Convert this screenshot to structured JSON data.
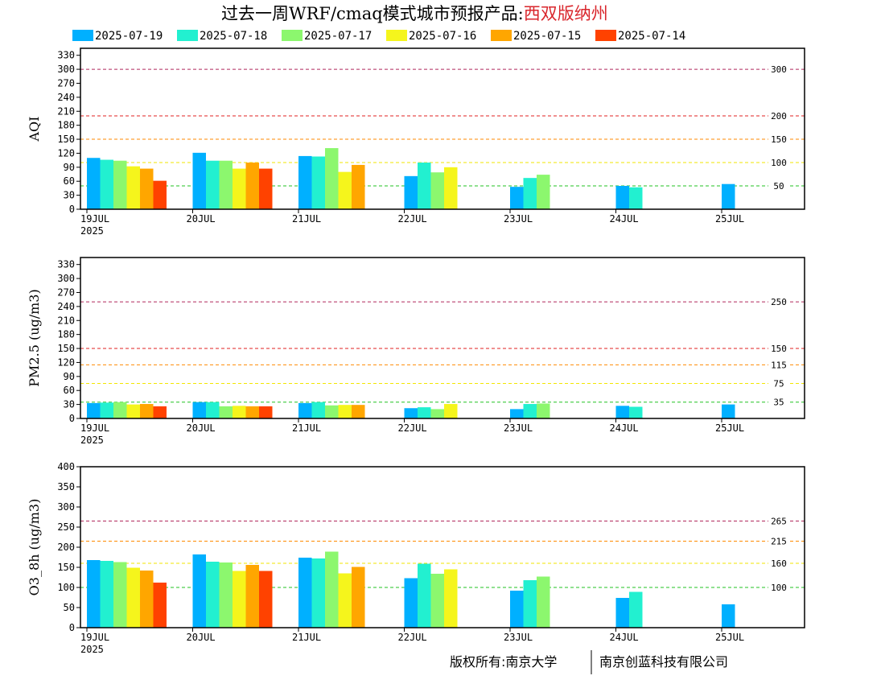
{
  "title": {
    "main": "过去一周WRF/cmaq模式城市预报产品:",
    "city": "西双版纳州"
  },
  "footer": {
    "left": "版权所有:南京大学",
    "right": "南京创蓝科技有限公司"
  },
  "chart_data": [
    {
      "type": "bar",
      "ylabel": "AQI",
      "ylim": [
        0,
        345
      ],
      "yticks": [
        0,
        30,
        60,
        90,
        120,
        150,
        180,
        210,
        240,
        270,
        300,
        330
      ],
      "categories": [
        "19JUL",
        "20JUL",
        "21JUL",
        "22JUL",
        "23JUL",
        "24JUL",
        "25JUL"
      ],
      "x_year_label": "2025",
      "series": [
        {
          "name": "2025-07-19",
          "color": "#00b0ff",
          "values": [
            110,
            121,
            114,
            71,
            48,
            50,
            54
          ]
        },
        {
          "name": "2025-07-18",
          "color": "#22f0d0",
          "values": [
            106,
            104,
            113,
            100,
            67,
            47,
            null
          ]
        },
        {
          "name": "2025-07-17",
          "color": "#8cf76e",
          "values": [
            104,
            104,
            131,
            79,
            74,
            null,
            null
          ]
        },
        {
          "name": "2025-07-16",
          "color": "#f5f51c",
          "values": [
            92,
            87,
            80,
            90,
            null,
            null,
            null
          ]
        },
        {
          "name": "2025-07-15",
          "color": "#ffa600",
          "values": [
            87,
            100,
            95,
            null,
            null,
            null,
            null
          ]
        },
        {
          "name": "2025-07-14",
          "color": "#ff4200",
          "values": [
            61,
            87,
            null,
            null,
            null,
            null,
            null
          ]
        }
      ],
      "thresholds": [
        {
          "value": 300,
          "label": "300",
          "color": "#b0285c"
        },
        {
          "value": 200,
          "label": "200",
          "color": "#e02020"
        },
        {
          "value": 150,
          "label": "150",
          "color": "#ff8a00"
        },
        {
          "value": 100,
          "label": "100",
          "color": "#f2e600"
        },
        {
          "value": 50,
          "label": "50",
          "color": "#22c322"
        }
      ]
    },
    {
      "type": "bar",
      "ylabel": "PM2.5 (ug/m3)",
      "ylim": [
        0,
        345
      ],
      "yticks": [
        0,
        30,
        60,
        90,
        120,
        150,
        180,
        210,
        240,
        270,
        300,
        330
      ],
      "categories": [
        "19JUL",
        "20JUL",
        "21JUL",
        "22JUL",
        "23JUL",
        "24JUL",
        "25JUL"
      ],
      "x_year_label": "2025",
      "series": [
        {
          "name": "2025-07-19",
          "color": "#00b0ff",
          "values": [
            33,
            35,
            33,
            22,
            20,
            27,
            30
          ]
        },
        {
          "name": "2025-07-18",
          "color": "#22f0d0",
          "values": [
            34,
            35,
            35,
            24,
            31,
            25,
            null
          ]
        },
        {
          "name": "2025-07-17",
          "color": "#8cf76e",
          "values": [
            35,
            26,
            28,
            20,
            32,
            null,
            null
          ]
        },
        {
          "name": "2025-07-16",
          "color": "#f5f51c",
          "values": [
            30,
            27,
            29,
            31,
            null,
            null,
            null
          ]
        },
        {
          "name": "2025-07-15",
          "color": "#ffa600",
          "values": [
            31,
            26,
            29,
            null,
            null,
            null,
            null
          ]
        },
        {
          "name": "2025-07-14",
          "color": "#ff4200",
          "values": [
            26,
            26,
            null,
            null,
            null,
            null,
            null
          ]
        }
      ],
      "thresholds": [
        {
          "value": 250,
          "label": "250",
          "color": "#b0285c"
        },
        {
          "value": 150,
          "label": "150",
          "color": "#e02020"
        },
        {
          "value": 115,
          "label": "115",
          "color": "#ff8a00"
        },
        {
          "value": 75,
          "label": "75",
          "color": "#f2e600"
        },
        {
          "value": 35,
          "label": "35",
          "color": "#22c322"
        }
      ]
    },
    {
      "type": "bar",
      "ylabel": "O3_8h (ug/m3)",
      "ylim": [
        0,
        400
      ],
      "yticks": [
        0,
        50,
        100,
        150,
        200,
        250,
        300,
        350,
        400
      ],
      "categories": [
        "19JUL",
        "20JUL",
        "21JUL",
        "22JUL",
        "23JUL",
        "24JUL",
        "25JUL"
      ],
      "x_year_label": "2025",
      "series": [
        {
          "name": "2025-07-19",
          "color": "#00b0ff",
          "values": [
            168,
            182,
            174,
            123,
            92,
            74,
            58
          ]
        },
        {
          "name": "2025-07-18",
          "color": "#22f0d0",
          "values": [
            166,
            164,
            172,
            159,
            118,
            89,
            null
          ]
        },
        {
          "name": "2025-07-17",
          "color": "#8cf76e",
          "values": [
            163,
            162,
            189,
            134,
            127,
            null,
            null
          ]
        },
        {
          "name": "2025-07-16",
          "color": "#f5f51c",
          "values": [
            149,
            141,
            135,
            145,
            null,
            null,
            null
          ]
        },
        {
          "name": "2025-07-15",
          "color": "#ffa600",
          "values": [
            142,
            156,
            151,
            null,
            null,
            null,
            null
          ]
        },
        {
          "name": "2025-07-14",
          "color": "#ff4200",
          "values": [
            112,
            141,
            null,
            null,
            null,
            null,
            null
          ]
        }
      ],
      "thresholds": [
        {
          "value": 265,
          "label": "265",
          "color": "#b0285c"
        },
        {
          "value": 215,
          "label": "215",
          "color": "#ff8a00"
        },
        {
          "value": 160,
          "label": "160",
          "color": "#f2e600"
        },
        {
          "value": 100,
          "label": "100",
          "color": "#22c322"
        }
      ]
    }
  ]
}
